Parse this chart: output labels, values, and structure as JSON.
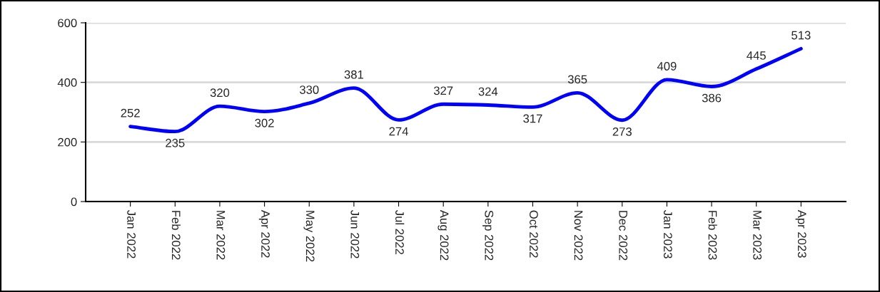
{
  "chart_data": {
    "type": "line",
    "categories": [
      "Jan 2022",
      "Feb 2022",
      "Mar 2022",
      "Apr 2022",
      "May 2022",
      "Jun 2022",
      "Jul 2022",
      "Aug 2022",
      "Sep 2022",
      "Oct 2022",
      "Nov 2022",
      "Dec 2022",
      "Jan 2023",
      "Feb 2023",
      "Mar 2023",
      "Apr 2023"
    ],
    "series": [
      {
        "color": "#0000ff",
        "values": [
          252,
          235,
          320,
          302,
          330,
          381,
          274,
          327,
          324,
          317,
          365,
          273,
          409,
          386,
          445,
          513
        ]
      }
    ],
    "ylim": [
      0,
      600
    ],
    "yticks": [
      0,
      200,
      400,
      600
    ],
    "grid": "y",
    "data_labels": true,
    "marker": "none",
    "line_style": "solid"
  }
}
